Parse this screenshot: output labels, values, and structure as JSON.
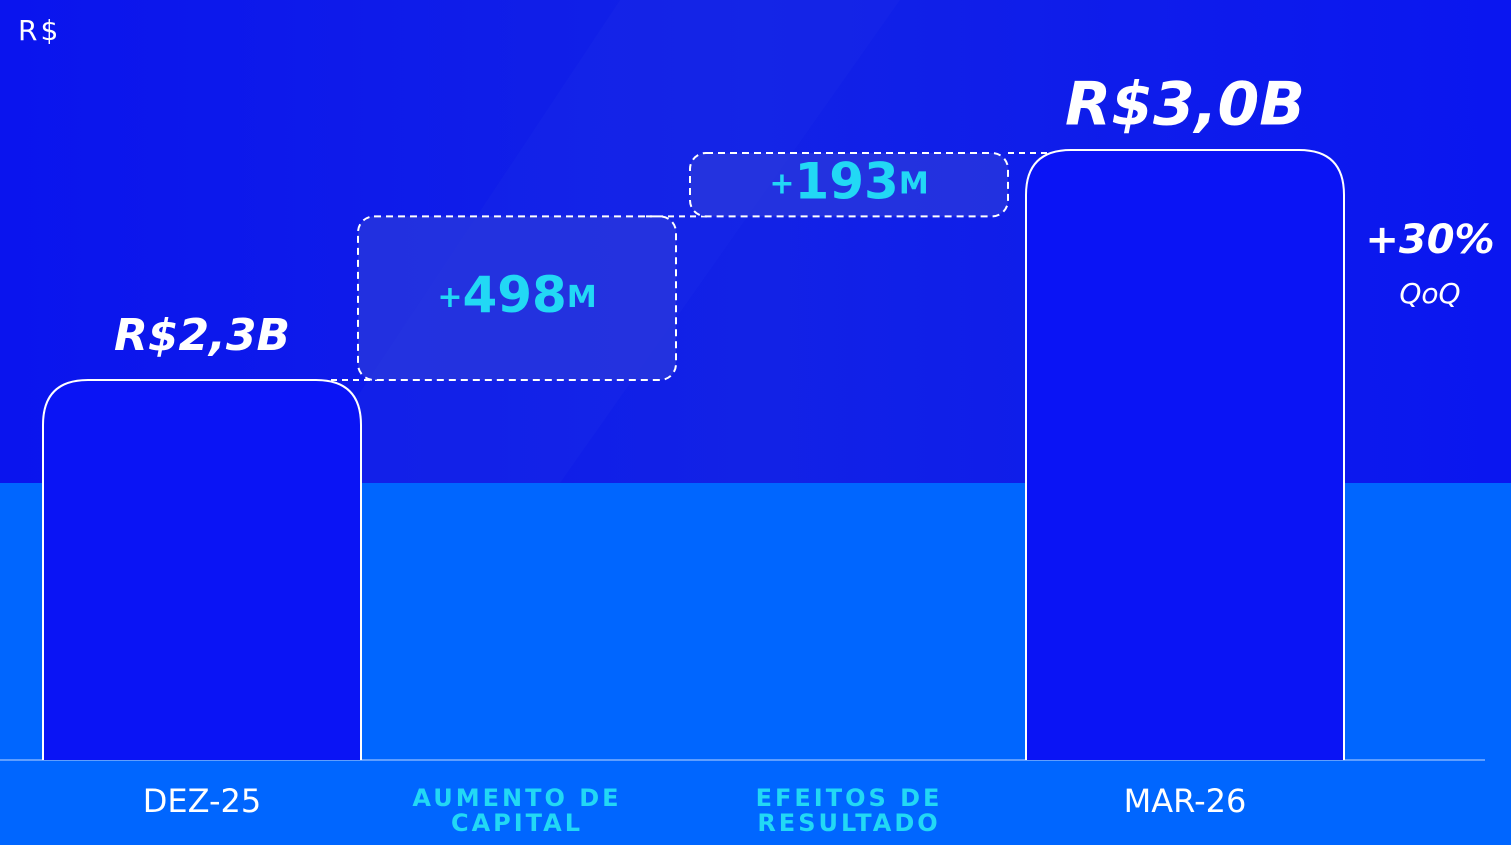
{
  "chart_data": {
    "type": "waterfall",
    "unit_label": "R$",
    "categories": [
      "DEZ-25",
      "AUMENTO DE CAPITAL",
      "EFEITOS DE RESULTADO",
      "MAR-26"
    ],
    "values": [
      2300,
      498,
      193,
      3000
    ],
    "value_labels": [
      "R$2,3B",
      "+498M",
      "+193M",
      "R$3,0B"
    ],
    "annotation": {
      "value": 30,
      "label": "+30%",
      "note": "QoQ"
    }
  }
}
